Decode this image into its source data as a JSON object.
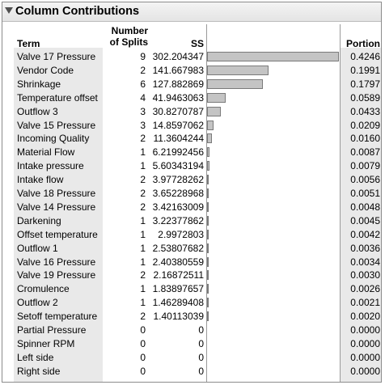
{
  "title": "Column Contributions",
  "headers": {
    "term": "Term",
    "splits_line1": "Number",
    "splits_line2": "of Splits",
    "ss": "SS",
    "portion": "Portion"
  },
  "rows": [
    {
      "term": "Valve 17 Pressure",
      "splits": "9",
      "ss": "302.204347",
      "portion": "0.4246"
    },
    {
      "term": "Vendor Code",
      "splits": "2",
      "ss": "141.667983",
      "portion": "0.1991"
    },
    {
      "term": "Shrinkage",
      "splits": "6",
      "ss": "127.882869",
      "portion": "0.1797"
    },
    {
      "term": "Temperature offset",
      "splits": "4",
      "ss": "41.9463063",
      "portion": "0.0589"
    },
    {
      "term": "Outflow 3",
      "splits": "3",
      "ss": "30.8270787",
      "portion": "0.0433"
    },
    {
      "term": "Valve 15 Pressure",
      "splits": "3",
      "ss": "14.8597062",
      "portion": "0.0209"
    },
    {
      "term": "Incoming Quality",
      "splits": "2",
      "ss": "11.3604244",
      "portion": "0.0160"
    },
    {
      "term": "Material Flow",
      "splits": "1",
      "ss": "6.21992456",
      "portion": "0.0087"
    },
    {
      "term": "Intake pressure",
      "splits": "1",
      "ss": "5.60343194",
      "portion": "0.0079"
    },
    {
      "term": "Intake flow",
      "splits": "2",
      "ss": "3.97728262",
      "portion": "0.0056"
    },
    {
      "term": "Valve 18 Pressure",
      "splits": "2",
      "ss": "3.65228968",
      "portion": "0.0051"
    },
    {
      "term": "Valve 14 Pressure",
      "splits": "2",
      "ss": "3.42163009",
      "portion": "0.0048"
    },
    {
      "term": "Darkening",
      "splits": "1",
      "ss": "3.22377862",
      "portion": "0.0045"
    },
    {
      "term": "Offset temperature",
      "splits": "1",
      "ss": "2.9972803",
      "portion": "0.0042"
    },
    {
      "term": "Outflow 1",
      "splits": "1",
      "ss": "2.53807682",
      "portion": "0.0036"
    },
    {
      "term": "Valve 16 Pressure",
      "splits": "1",
      "ss": "2.40380559",
      "portion": "0.0034"
    },
    {
      "term": "Valve 19 Pressure",
      "splits": "2",
      "ss": "2.16872511",
      "portion": "0.0030"
    },
    {
      "term": "Cromulence",
      "splits": "1",
      "ss": "1.83897657",
      "portion": "0.0026"
    },
    {
      "term": "Outflow 2",
      "splits": "1",
      "ss": "1.46289408",
      "portion": "0.0021"
    },
    {
      "term": "Setoff temperature",
      "splits": "2",
      "ss": "1.40113039",
      "portion": "0.0020"
    },
    {
      "term": "Partial Pressure",
      "splits": "0",
      "ss": "0",
      "portion": "0.0000"
    },
    {
      "term": "Spinner RPM",
      "splits": "0",
      "ss": "0",
      "portion": "0.0000"
    },
    {
      "term": "Left side",
      "splits": "0",
      "ss": "0",
      "portion": "0.0000"
    },
    {
      "term": "Right side",
      "splits": "0",
      "ss": "0",
      "portion": "0.0000"
    }
  ],
  "icons": {
    "collapse": "disclosure-triangle-icon"
  },
  "colors": {
    "bar_fill": "#c4c4c4",
    "column_shade": "#e9e9e9"
  }
}
